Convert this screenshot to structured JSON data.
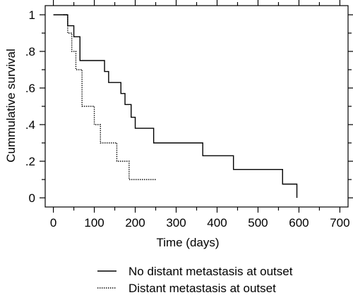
{
  "chart_data": {
    "type": "line",
    "step": true,
    "title": "",
    "xlabel": "Time (days)",
    "ylabel": "Cummulative survival",
    "xlim": [
      -20,
      720
    ],
    "ylim": [
      -0.05,
      1.05
    ],
    "xticks": [
      0,
      100,
      200,
      300,
      400,
      500,
      600,
      700
    ],
    "xtick_labels": [
      "0",
      "100",
      "200",
      "300",
      "400",
      "500",
      "600",
      "700"
    ],
    "yticks": [
      0,
      0.2,
      0.4,
      0.6,
      0.8,
      1
    ],
    "ytick_labels": [
      "0",
      ".2",
      ".4",
      ".6",
      ".8",
      "1"
    ],
    "grid": false,
    "legend_position": "bottom",
    "series": [
      {
        "name": "No distant metastasis at outset",
        "line_style": "solid",
        "color": "#000000",
        "x": [
          0,
          35,
          50,
          65,
          125,
          135,
          165,
          175,
          190,
          200,
          210,
          245,
          365,
          440,
          560,
          595
        ],
        "y": [
          1,
          0.94,
          0.88,
          0.75,
          0.69,
          0.63,
          0.57,
          0.51,
          0.44,
          0.38,
          0.38,
          0.3,
          0.23,
          0.155,
          0.075,
          0
        ]
      },
      {
        "name": "Distant metastasis at outset",
        "line_style": "dotted",
        "color": "#000000",
        "x": [
          25,
          35,
          45,
          55,
          65,
          70,
          100,
          115,
          125,
          155,
          185,
          250
        ],
        "y": [
          1,
          0.9,
          0.8,
          0.7,
          0.7,
          0.5,
          0.4,
          0.3,
          0.3,
          0.2,
          0.1,
          0.1
        ]
      }
    ]
  }
}
